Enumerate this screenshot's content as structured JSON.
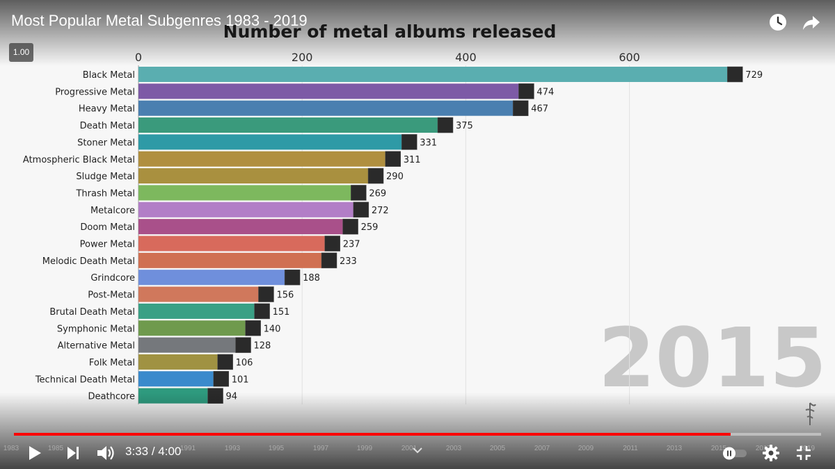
{
  "video": {
    "title": "Most Popular Metal Subgenres 1983 - 2019",
    "speed_badge": "1.00",
    "current_time": "3:33",
    "duration": "4:00",
    "time_separator": " / ",
    "progress_fraction": 0.888
  },
  "timeline": {
    "year_labels": [
      "1983",
      "1985",
      "1991",
      "1993",
      "1995",
      "1997",
      "1999",
      "2001",
      "2003",
      "2005",
      "2007",
      "2009",
      "2011",
      "2013",
      "2015",
      "2017",
      "2019"
    ]
  },
  "chart_data": {
    "type": "bar",
    "title": "Number of metal albums released",
    "year_label": "2015",
    "x_ticks": [
      0,
      200,
      400,
      600
    ],
    "xlim": [
      0,
      729
    ],
    "categories": [
      "Black Metal",
      "Progressive Metal",
      "Heavy Metal",
      "Death Metal",
      "Stoner Metal",
      "Atmospheric Black Metal",
      "Sludge Metal",
      "Thrash Metal",
      "Metalcore",
      "Doom Metal",
      "Power Metal",
      "Melodic Death Metal",
      "Grindcore",
      "Post-Metal",
      "Brutal Death Metal",
      "Symphonic Metal",
      "Alternative Metal",
      "Folk Metal",
      "Technical Death Metal",
      "Deathcore"
    ],
    "values": [
      729,
      474,
      467,
      375,
      331,
      311,
      290,
      269,
      272,
      259,
      237,
      233,
      188,
      156,
      151,
      140,
      128,
      106,
      101,
      94
    ],
    "colors": [
      "#5aaeb0",
      "#7d5aa6",
      "#4a7fb0",
      "#3a9a7c",
      "#2e9aa6",
      "#b08f3f",
      "#a9903f",
      "#7db85e",
      "#b27ec7",
      "#a9508a",
      "#d86a5c",
      "#d07052",
      "#6f8fdc",
      "#d0785c",
      "#3aa085",
      "#6f9a4d",
      "#75787c",
      "#a09242",
      "#3a8acc",
      "#2e9a7e"
    ]
  }
}
